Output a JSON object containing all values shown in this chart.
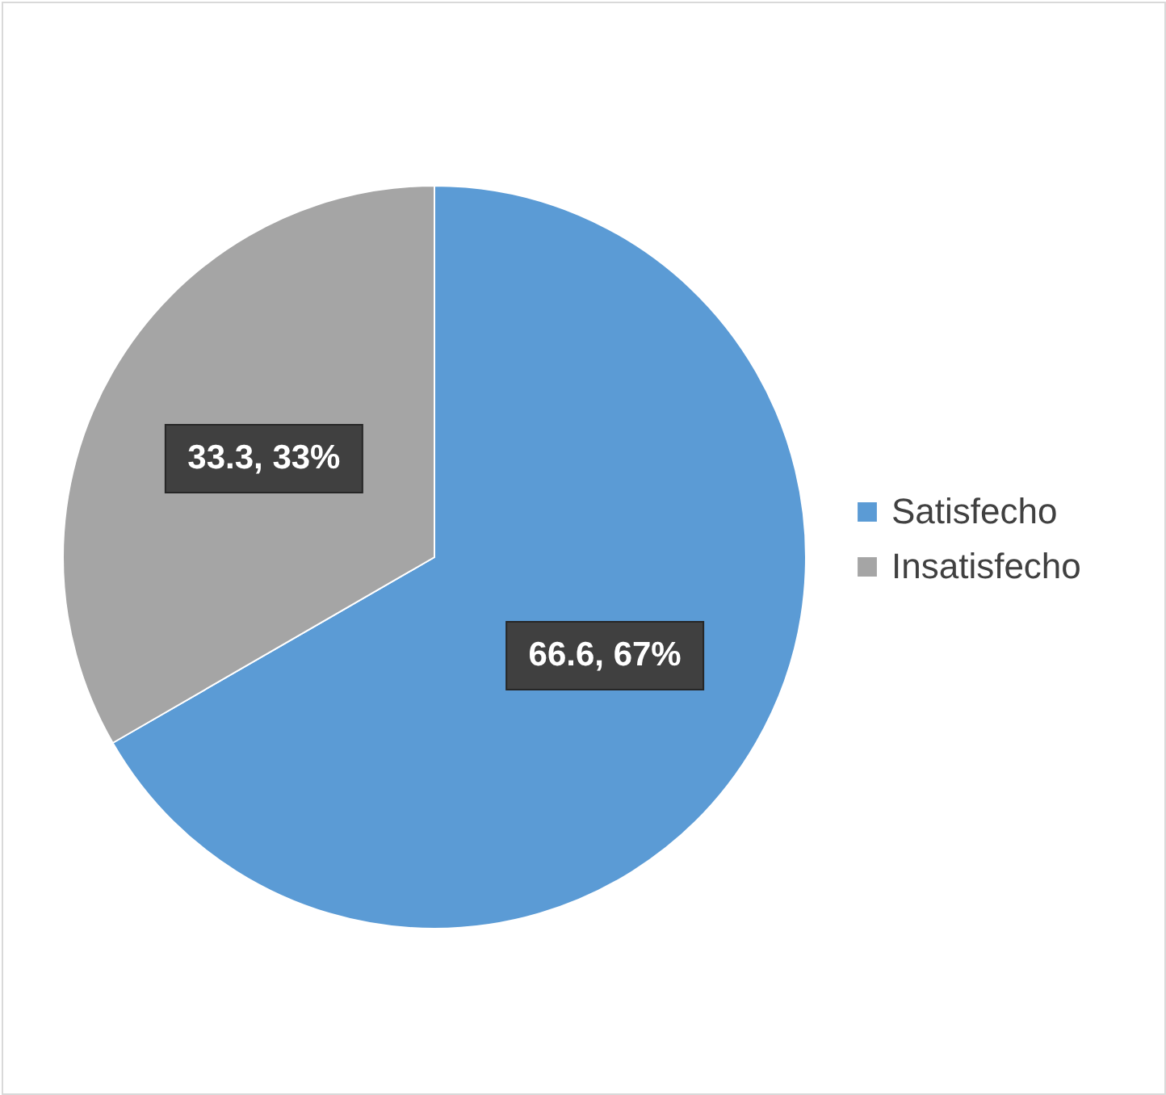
{
  "chart_data": {
    "type": "pie",
    "categories": [
      "Satisfecho",
      "Insatisfecho"
    ],
    "values": [
      66.6,
      33.3
    ],
    "colors": [
      "#5b9bd5",
      "#a5a5a5"
    ],
    "value_labels": [
      "66.6, 67%",
      "33.3, 33%"
    ],
    "legend": "right"
  }
}
